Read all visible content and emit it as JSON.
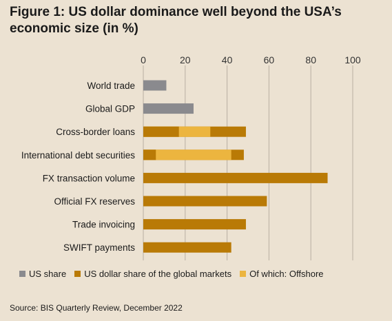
{
  "title": "Figure 1: US dollar dominance well beyond the USA’s economic size (in %)",
  "source": "Source: BIS Quarterly Review, December 2022",
  "colors": {
    "us_share": "#8a8a8e",
    "usd_share": "#b97a06",
    "offshore": "#ecb53f",
    "grid": "#b8afa2"
  },
  "chart_data": {
    "type": "bar",
    "orientation": "horizontal",
    "stacked": "overlay",
    "title": "Figure 1: US dollar dominance well beyond the USA’s economic size (in %)",
    "xlim": [
      0,
      100
    ],
    "xticks": [
      0,
      20,
      40,
      60,
      80,
      100
    ],
    "categories": [
      "World trade",
      "Global GDP",
      "Cross-border loans",
      "International debt securities",
      "FX transaction volume",
      "Official FX reserves",
      "Trade invoicing",
      "SWIFT payments"
    ],
    "series": [
      {
        "name": "US share",
        "color": "#8a8a8e",
        "values": [
          11,
          24,
          null,
          null,
          null,
          null,
          null,
          null
        ]
      },
      {
        "name": "US dollar share of the global markets",
        "color": "#b97a06",
        "values": [
          null,
          null,
          49,
          48,
          88,
          59,
          49,
          42
        ]
      },
      {
        "name": "Of which: Offshore",
        "color": "#ecb53f",
        "values": [
          null,
          null,
          32,
          42,
          null,
          null,
          null,
          null
        ]
      }
    ],
    "legend_position": "bottom",
    "grid": "vertical"
  }
}
